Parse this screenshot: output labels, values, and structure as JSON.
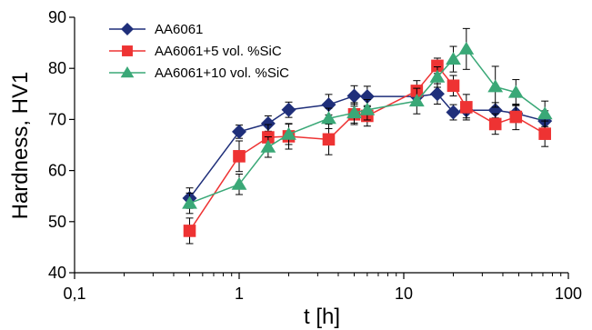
{
  "chart_data": {
    "type": "scatter",
    "xscale": "log",
    "xlabel": "t [h]",
    "ylabel": "Hardness, HV1",
    "xlim": [
      0.1,
      100
    ],
    "ylim": [
      40,
      90
    ],
    "xticks": [
      0.1,
      1,
      10,
      100
    ],
    "xtick_labels": [
      "0,1",
      "1",
      "10",
      "100"
    ],
    "yticks": [
      40,
      50,
      60,
      70,
      80,
      90
    ],
    "ytick_labels": [
      "40",
      "50",
      "60",
      "70",
      "80",
      "90"
    ],
    "grid": false,
    "legend_position": "top-left",
    "series": [
      {
        "name": "AA6061",
        "color": "#1f2f7a",
        "marker": "diamond",
        "x": [
          0.5,
          1,
          1.5,
          2,
          3.5,
          5,
          6,
          12,
          16,
          20,
          24,
          36,
          48,
          72
        ],
        "y": [
          54.6,
          67.6,
          69.2,
          71.9,
          72.9,
          74.6,
          74.5,
          74.5,
          75.0,
          71.4,
          71.8,
          71.8,
          71.2,
          69.7
        ],
        "err": [
          2,
          1.3,
          1.5,
          1.5,
          2,
          2,
          2,
          1.5,
          2,
          1.5,
          1.5,
          1.5,
          1.5,
          2
        ]
      },
      {
        "name": "AA6061+5 vol. %SiC",
        "color": "#ee3333",
        "marker": "square",
        "x": [
          0.5,
          1,
          1.5,
          2,
          3.5,
          5,
          6,
          12,
          16,
          20,
          24,
          36,
          48,
          72
        ],
        "y": [
          48.2,
          62.8,
          66.5,
          66.7,
          66.1,
          71.0,
          70.7,
          75.6,
          80.5,
          76.6,
          72.4,
          69.1,
          70.5,
          67.2
        ],
        "err": [
          2.5,
          3,
          2.5,
          2.5,
          3,
          2,
          2,
          2,
          1.5,
          2,
          2.5,
          2,
          2.5,
          2.5
        ]
      },
      {
        "name": "AA6061+10 vol. %SiC",
        "color": "#3aa877",
        "marker": "triangle",
        "x": [
          0.5,
          1,
          1.5,
          2,
          3.5,
          5,
          6,
          12,
          16,
          20,
          24,
          36,
          48,
          72
        ],
        "y": [
          53.6,
          57.3,
          64.6,
          67.1,
          70.2,
          71.3,
          71.9,
          73.6,
          78.3,
          81.8,
          83.8,
          76.4,
          75.3,
          71.1
        ],
        "err": [
          2,
          2,
          2,
          2,
          2,
          2,
          2,
          2.5,
          2,
          2.5,
          4,
          4,
          2.5,
          2.5
        ]
      }
    ]
  }
}
